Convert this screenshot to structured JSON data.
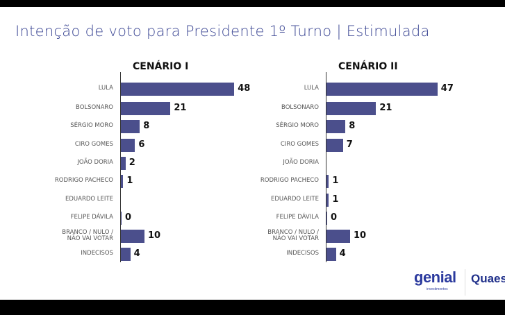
{
  "title": "Intenção de voto para Presidente 1º Turno | Estimulada",
  "colors": {
    "bar": "#4b4f8c",
    "title": "#3c4794"
  },
  "logos": {
    "genial": "genial",
    "genial_sub": "investimentos",
    "quaest": "Quaest"
  },
  "chart_data": [
    {
      "type": "bar",
      "orientation": "horizontal",
      "title": "CENÁRIO I",
      "categories": [
        "LULA",
        "BOLSONARO",
        "SÉRGIO MORO",
        "CIRO GOMES",
        "JOÃO DORIA",
        "RODRIGO PACHECO",
        "EDUARDO LEITE",
        "FELIPE DÁVILA",
        "BRANCO / NULO / NÃO VAI VOTAR",
        "INDECISOS"
      ],
      "values": [
        48,
        21,
        8,
        6,
        2,
        1,
        null,
        0,
        10,
        4
      ]
    },
    {
      "type": "bar",
      "orientation": "horizontal",
      "title": "CENÁRIO II",
      "categories": [
        "LULA",
        "BOLSONARO",
        "SÉRGIO MORO",
        "CIRO GOMES",
        "JOÃO DORIA",
        "RODRIGO PACHECO",
        "EDUARDO LEITE",
        "FELIPE DÁVILA",
        "BRANCO / NULO / NÃO VAI VOTAR",
        "INDECISOS"
      ],
      "values": [
        47,
        21,
        8,
        7,
        null,
        1,
        1,
        0,
        10,
        4
      ]
    }
  ]
}
